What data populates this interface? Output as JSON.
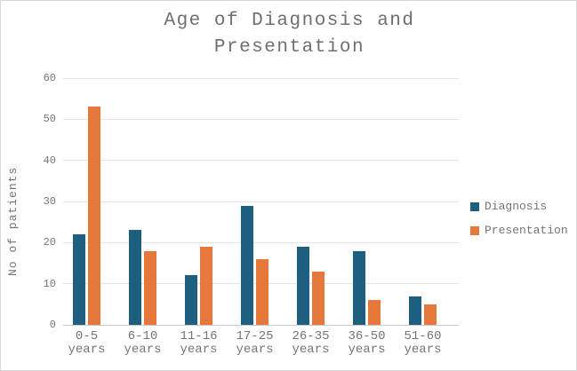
{
  "chart": {
    "title": "Age of Diagnosis and Presentation"
  },
  "chart_data": {
    "type": "bar",
    "title": "Age of Diagnosis and Presentation",
    "categories": [
      "0-5 years",
      "6-10 years",
      "11-16 years",
      "17-25 years",
      "26-35 years",
      "36-50 years",
      "51-60 years"
    ],
    "series": [
      {
        "name": "Diagnosis",
        "color": "#1e5f80",
        "values": [
          22,
          23,
          12,
          29,
          19,
          18,
          7
        ]
      },
      {
        "name": "Presentation",
        "color": "#e5783a",
        "values": [
          53,
          18,
          19,
          16,
          13,
          6,
          5
        ]
      }
    ],
    "xlabel": "",
    "ylabel": "No of patients",
    "ylim": [
      0,
      60
    ],
    "ytick_step": 10,
    "yticks": [
      0,
      10,
      20,
      30,
      40,
      50,
      60
    ],
    "grid": true,
    "legend_position": "right",
    "colors": {
      "text": "#757575",
      "title_text": "#6f6f6f",
      "gridline": "#e4e4e4",
      "axis_line": "#c9c9c9",
      "border": "#d9d9d9",
      "background": "#ffffff"
    }
  }
}
